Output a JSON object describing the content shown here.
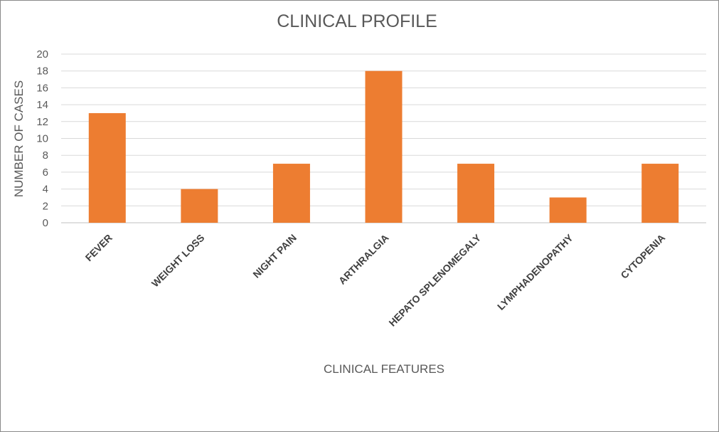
{
  "chart_data": {
    "type": "bar",
    "title": "CLINICAL PROFILE",
    "xlabel": "CLINICAL FEATURES",
    "ylabel": "NUMBER OF CASES",
    "categories": [
      "FEVER",
      "WEIGHT LOSS",
      "NIGHT PAIN",
      "ARTHRALGIA",
      "HEPATO SPLENOMEGALY",
      "LYMPHADENOPATHY",
      "CYTOPENIA"
    ],
    "values": [
      13,
      4,
      7,
      18,
      7,
      3,
      7
    ],
    "ylim": [
      0,
      20
    ],
    "yticks": [
      0,
      2,
      4,
      6,
      8,
      10,
      12,
      14,
      16,
      18,
      20
    ],
    "grid": true,
    "bar_color": "#ED7D31"
  }
}
